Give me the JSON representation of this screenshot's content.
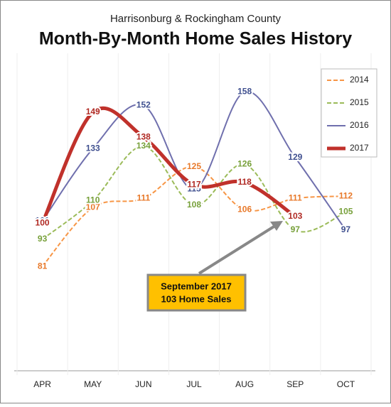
{
  "chart_data": {
    "type": "line",
    "subtitle": "Harrisonburg & Rockingham County",
    "title": "Month-By-Month Home Sales History",
    "categories": [
      "APR",
      "MAY",
      "JUN",
      "JUL",
      "AUG",
      "SEP",
      "OCT"
    ],
    "series": [
      {
        "name": "2014",
        "color": "#f79646",
        "label_color": "#e8792a",
        "values": [
          81,
          107,
          111,
          125,
          106,
          111,
          112
        ]
      },
      {
        "name": "2015",
        "color": "#9bbb59",
        "label_color": "#77a03a",
        "values": [
          93,
          110,
          134,
          108,
          126,
          97,
          105
        ]
      },
      {
        "name": "2016",
        "color": "#6f6fad",
        "label_color": "#3f4f8f",
        "values": [
          101,
          133,
          152,
          115,
          158,
          129,
          97
        ]
      },
      {
        "name": "2017",
        "color": "#c0312b",
        "label_color": "#b02a24",
        "values": [
          100,
          149,
          138,
          117,
          118,
          103,
          null
        ]
      }
    ],
    "ylim": [
      35,
      175
    ],
    "annotation": [
      "September 2017",
      "103 Home Sales"
    ]
  }
}
